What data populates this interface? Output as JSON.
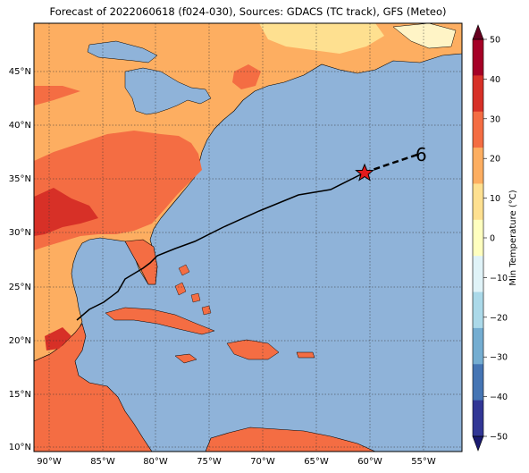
{
  "title": "Forecast of 2022060618 (f024-030), Sources: GDACS (TC track), GFS (Meteo)",
  "lat_ticks": [
    "45°N",
    "40°N",
    "35°N",
    "30°N",
    "25°N",
    "20°N",
    "15°N",
    "10°N"
  ],
  "lon_ticks": [
    "90°W",
    "85°W",
    "80°W",
    "75°W",
    "70°W",
    "65°W",
    "60°W",
    "55°W"
  ],
  "colorbar": {
    "label": "Min Temperature (°C)",
    "ticks": [
      "50",
      "40",
      "30",
      "20",
      "10",
      "0",
      "−10",
      "−20",
      "−30",
      "−40",
      "−50"
    ],
    "colors": [
      "#67001f",
      "#a50026",
      "#d73027",
      "#f46d43",
      "#fdae61",
      "#fee090",
      "#ffffbf",
      "#e0f3f8",
      "#abd9e9",
      "#74add1",
      "#4575b4",
      "#313695",
      "#1a1a70"
    ]
  },
  "map": {
    "ocean_color": "#8fb3d9",
    "land_color_warm": "#fdae61",
    "land_color_hot": "#f46d43",
    "land_color_cool": "#fee090",
    "track": {
      "color": "#000000",
      "storm_symbol": "6",
      "forecast_position_marker": "star"
    }
  }
}
